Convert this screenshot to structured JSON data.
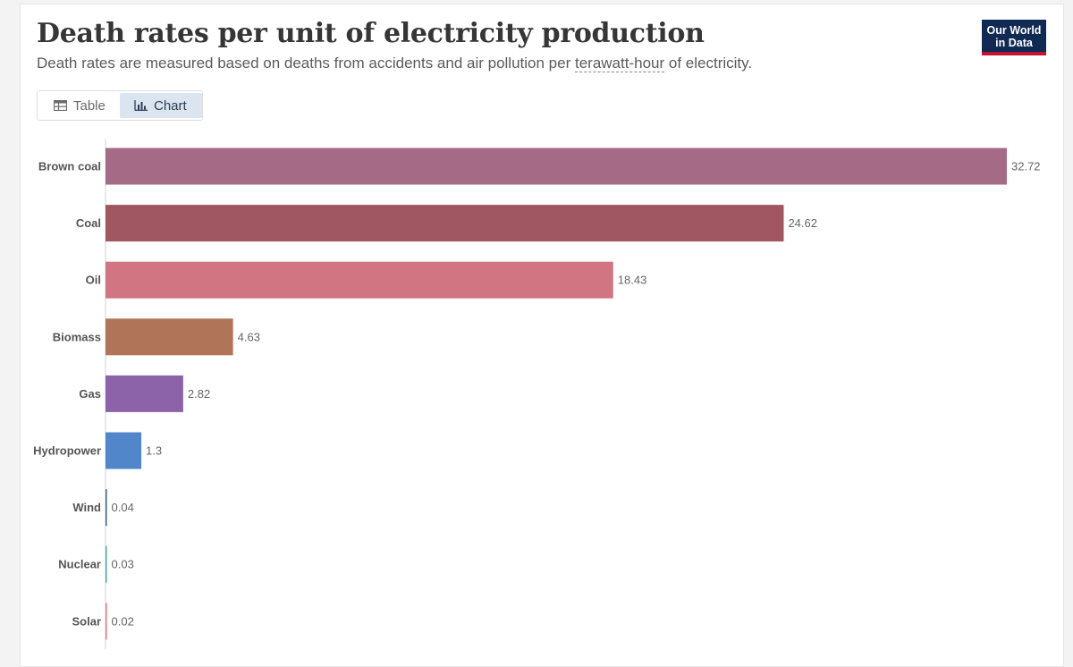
{
  "header": {
    "title": "Death rates per unit of electricity production",
    "subtitle_before": "Death rates are measured based on deaths from accidents and air pollution per",
    "subtitle_term": "terawatt-hour",
    "subtitle_after": "of electricity."
  },
  "logo": {
    "line1": "Our World",
    "line2": "in Data"
  },
  "tabs": {
    "table_label": "Table",
    "chart_label": "Chart",
    "active": "Chart"
  },
  "chart_data": {
    "type": "bar",
    "orientation": "horizontal",
    "title": "Death rates per unit of electricity production",
    "xlabel": "",
    "ylabel": "",
    "unit": "deaths per terawatt-hour",
    "categories": [
      "Brown coal",
      "Coal",
      "Oil",
      "Biomass",
      "Gas",
      "Hydropower",
      "Wind",
      "Nuclear",
      "Solar"
    ],
    "values": [
      32.72,
      24.62,
      18.43,
      4.63,
      2.82,
      1.3,
      0.04,
      0.03,
      0.02
    ],
    "value_labels": [
      "32.72",
      "24.62",
      "18.43",
      "4.63",
      "2.82",
      "1.3",
      "0.04",
      "0.03",
      "0.02"
    ],
    "colors": [
      "#a46a86",
      "#a05762",
      "#d27583",
      "#b07558",
      "#8c63a8",
      "#5186ca",
      "#3e5f78",
      "#4aa7a0",
      "#e07a7a"
    ],
    "xlim": [
      0,
      32.72
    ],
    "grid": false,
    "legend": "none"
  }
}
